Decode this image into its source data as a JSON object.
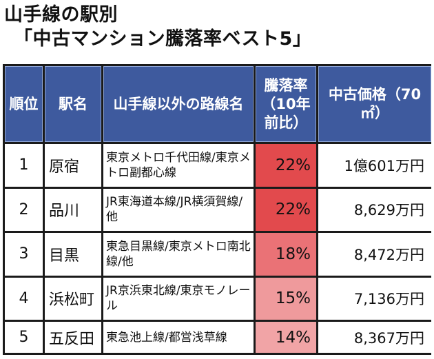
{
  "title": {
    "line1": "山手線の駅別",
    "line2": "「中古マンション騰落率ベスト5」"
  },
  "headers": {
    "rank": "順位",
    "station": "駅名",
    "other_lines": "山手線以外の路線名",
    "rate": "騰落率（10年前比）",
    "price": "中古価格（70㎡）"
  },
  "rows": [
    {
      "rank": "1",
      "station": "原宿",
      "lines": "東京メトロ千代田線/東京メトロ副都心線",
      "rate": "22%",
      "rate_value": 22,
      "price": "1億601万円",
      "rate_color": "#e24a4d"
    },
    {
      "rank": "2",
      "station": "品川",
      "lines": "JR東海道本線/JR横須賀線/他",
      "rate": "22%",
      "rate_value": 22,
      "price": "8,629万円",
      "rate_color": "#e24a4d"
    },
    {
      "rank": "3",
      "station": "目黒",
      "lines": "東急目黒線/東京メトロ南北線/他",
      "rate": "18%",
      "rate_value": 18,
      "price": "8,472万円",
      "rate_color": "#ea7276"
    },
    {
      "rank": "4",
      "station": "浜松町",
      "lines": "JR京浜東北線/東京モノレール",
      "rate": "15%",
      "rate_value": 15,
      "price": "7,136万円",
      "rate_color": "#ef9a9c"
    },
    {
      "rank": "5",
      "station": "五反田",
      "lines": "東急池上線/都営浅草線",
      "rate": "14%",
      "rate_value": 14,
      "price": "8,367万円",
      "rate_color": "#f1a4a6"
    }
  ]
}
